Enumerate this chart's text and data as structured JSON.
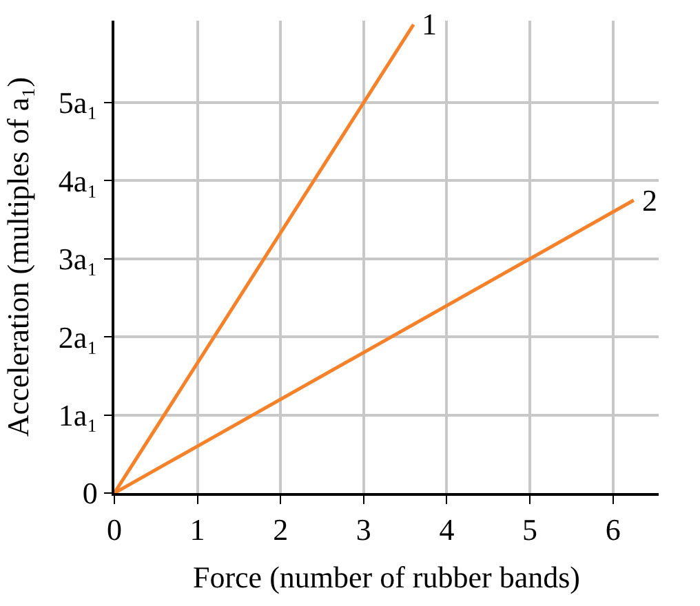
{
  "chart_data": {
    "type": "line",
    "xlabel": "Force (number of rubber bands)",
    "ylabel": "Acceleration (multiples of a₁)",
    "series": [
      {
        "name": "1",
        "color": "#f5822a",
        "x": [
          0,
          3.6
        ],
        "values": [
          0,
          6
        ]
      },
      {
        "name": "2",
        "color": "#f5822a",
        "x": [
          0,
          6.25
        ],
        "values": [
          0,
          3.75
        ]
      }
    ],
    "xlim": [
      0,
      6.55
    ],
    "ylim": [
      0,
      6.05
    ],
    "xticks": [
      0,
      1,
      2,
      3,
      4,
      5,
      6
    ],
    "yticks": [
      0,
      {
        "value": 1,
        "label": "1a₁"
      },
      {
        "value": 2,
        "label": "2a₁"
      },
      {
        "value": 3,
        "label": "3a₁"
      },
      {
        "value": 4,
        "label": "4a₁"
      },
      {
        "value": 5,
        "label": "5a₁"
      }
    ],
    "grid": true,
    "legend": false,
    "marker": "none",
    "line_style": "solid"
  }
}
